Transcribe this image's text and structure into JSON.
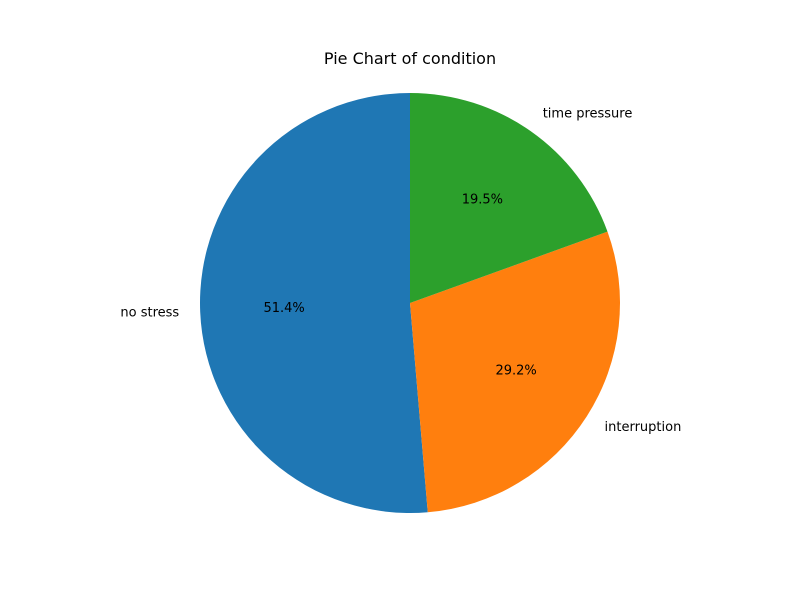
{
  "chart_data": {
    "type": "pie",
    "title": "Pie Chart of condition",
    "start_angle_deg": 90,
    "direction": "counterclockwise",
    "slices": [
      {
        "label": "no stress",
        "value": 51.4,
        "pct_label": "51.4%",
        "color": "#1f77b4"
      },
      {
        "label": "interruption",
        "value": 29.2,
        "pct_label": "29.2%",
        "color": "#ff7f0e"
      },
      {
        "label": "time pressure",
        "value": 19.5,
        "pct_label": "19.5%",
        "color": "#2ca02c"
      }
    ]
  }
}
